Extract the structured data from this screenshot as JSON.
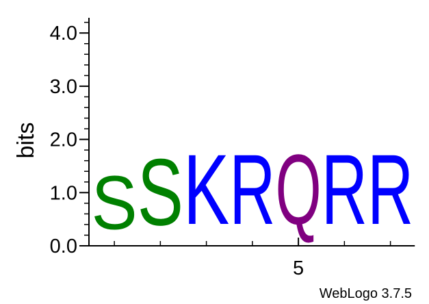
{
  "chart_data": {
    "type": "sequence-logo",
    "ylabel": "bits",
    "ylim": [
      0,
      4.3
    ],
    "yticks": [
      {
        "value": 0,
        "label": "0.0"
      },
      {
        "value": 1,
        "label": "1.0"
      },
      {
        "value": 2,
        "label": "2.0"
      },
      {
        "value": 3,
        "label": "3.0"
      },
      {
        "value": 4,
        "label": "4.0"
      }
    ],
    "y_minor_step": 0.2,
    "positions": [
      1,
      2,
      3,
      4,
      5,
      6,
      7
    ],
    "x_tick_labels": [
      {
        "position": 5,
        "label": "5"
      }
    ],
    "columns": [
      {
        "position": 1,
        "stack": [
          {
            "letter": "S",
            "bits": 1.6,
            "color": "#008000"
          }
        ]
      },
      {
        "position": 2,
        "stack": [
          {
            "letter": "S",
            "bits": 2.0,
            "color": "#008000"
          }
        ]
      },
      {
        "position": 3,
        "stack": [
          {
            "letter": "K",
            "bits": 2.1,
            "color": "#0000ff"
          }
        ]
      },
      {
        "position": 4,
        "stack": [
          {
            "letter": "R",
            "bits": 2.1,
            "color": "#0000ff"
          }
        ]
      },
      {
        "position": 5,
        "stack": [
          {
            "letter": "Q",
            "bits": 2.1,
            "color": "#800080"
          }
        ]
      },
      {
        "position": 6,
        "stack": [
          {
            "letter": "R",
            "bits": 2.1,
            "color": "#0000ff"
          }
        ]
      },
      {
        "position": 7,
        "stack": [
          {
            "letter": "R",
            "bits": 2.1,
            "color": "#0000ff"
          }
        ]
      }
    ]
  },
  "footer": {
    "credit": "WebLogo 3.7.5"
  }
}
